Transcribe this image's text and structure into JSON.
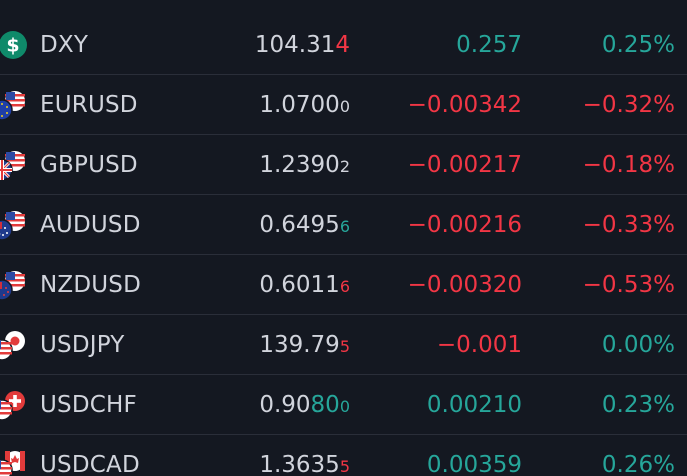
{
  "colors": {
    "background": "#141821",
    "positive": "#26a69a",
    "negative": "#f23645",
    "text": "#d1d4dc",
    "divider": "#2a2e39"
  },
  "rows": [
    {
      "symbol": "DXY",
      "icon": "dollar-sign-icon",
      "last_main": "104.31",
      "last_accent": "",
      "last_pip": "4",
      "pip_dir": "down",
      "accent_dir": "neutral",
      "chg": "0.257",
      "chg_pct": "0.25%",
      "dir": "up"
    },
    {
      "symbol": "EURUSD",
      "icon": "eu-us-flags-icon",
      "last_main": "1.0700",
      "last_accent": "",
      "last_pip": "0",
      "pip_dir": "neutral",
      "accent_dir": "neutral",
      "chg": "−0.00342",
      "chg_pct": "−0.32%",
      "dir": "down"
    },
    {
      "symbol": "GBPUSD",
      "icon": "gb-us-flags-icon",
      "last_main": "1.2390",
      "last_accent": "",
      "last_pip": "2",
      "pip_dir": "neutral",
      "accent_dir": "neutral",
      "chg": "−0.00217",
      "chg_pct": "−0.18%",
      "dir": "down"
    },
    {
      "symbol": "AUDUSD",
      "icon": "au-us-flags-icon",
      "last_main": "0.6495",
      "last_accent": "",
      "last_pip": "6",
      "pip_dir": "up",
      "accent_dir": "neutral",
      "chg": "−0.00216",
      "chg_pct": "−0.33%",
      "dir": "down"
    },
    {
      "symbol": "NZDUSD",
      "icon": "nz-us-flags-icon",
      "last_main": "0.6011",
      "last_accent": "",
      "last_pip": "6",
      "pip_dir": "down",
      "accent_dir": "neutral",
      "chg": "−0.00320",
      "chg_pct": "−0.53%",
      "dir": "down"
    },
    {
      "symbol": "USDJPY",
      "icon": "us-jp-flags-icon",
      "last_main": "139.79",
      "last_accent": "",
      "last_pip": "5",
      "pip_dir": "down",
      "accent_dir": "neutral",
      "chg": "−0.001",
      "chg_pct": "0.00%",
      "dir": "down",
      "pct_dir": "up"
    },
    {
      "symbol": "USDCHF",
      "icon": "us-ch-flags-icon",
      "last_main": "0.90",
      "last_accent": "80",
      "last_pip": "0",
      "pip_dir": "up",
      "accent_dir": "up",
      "chg": "0.00210",
      "chg_pct": "0.23%",
      "dir": "up"
    },
    {
      "symbol": "USDCAD",
      "icon": "us-ca-flags-icon",
      "last_main": "1.3635",
      "last_accent": "",
      "last_pip": "5",
      "pip_dir": "down",
      "accent_dir": "neutral",
      "chg": "0.00359",
      "chg_pct": "0.26%",
      "dir": "up"
    }
  ]
}
